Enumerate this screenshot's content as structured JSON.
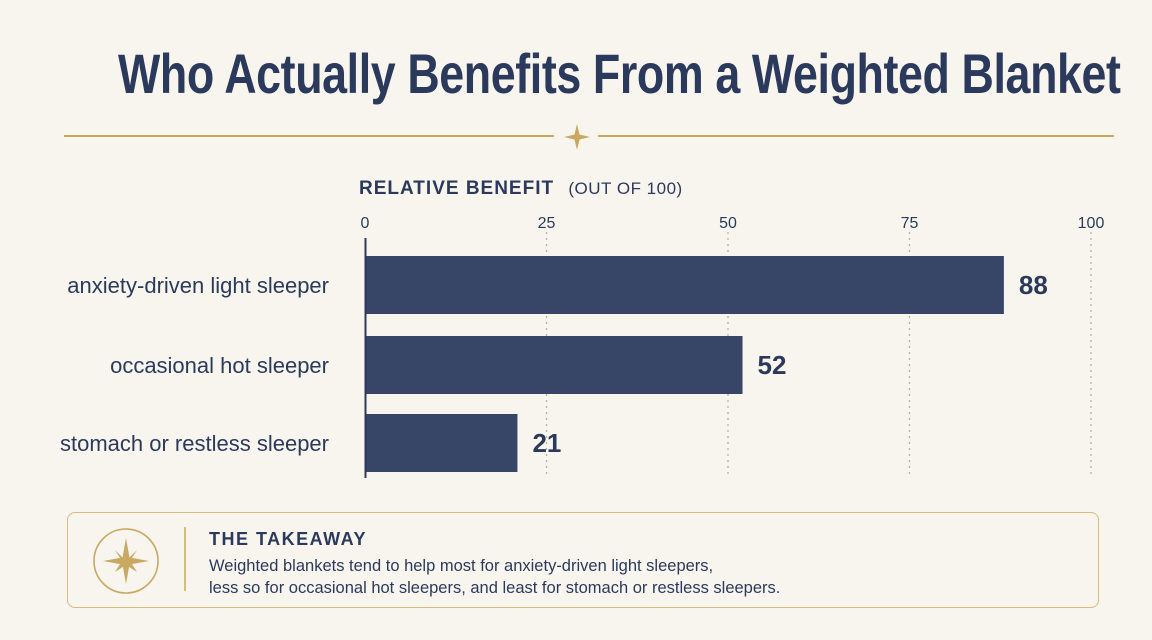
{
  "title": "Who Actually Benefits From a Weighted Blanket",
  "colors": {
    "background": "#f8f5ee",
    "navy": "#2b3a5c",
    "bar": "#374567",
    "gold": "#c9a862",
    "grid": "#b9b2a3"
  },
  "icons": {
    "divider_ornament": "four-point-star-icon",
    "takeaway": "compass-star-icon"
  },
  "chart_data": {
    "type": "bar",
    "orientation": "horizontal",
    "axis_title": "RELATIVE BENEFIT",
    "axis_title_sub": "(OUT OF 100)",
    "categories": [
      "anxiety-driven light sleeper",
      "occasional hot sleeper",
      "stomach or restless sleeper"
    ],
    "values": [
      88,
      52,
      21
    ],
    "xlim": [
      0,
      100
    ],
    "ticks": [
      0,
      25,
      50,
      75,
      100
    ],
    "grid": true,
    "grid_style": "dotted"
  },
  "takeaway": {
    "heading": "THE TAKEAWAY",
    "line1": "Weighted blankets tend to help most for anxiety-driven light sleepers,",
    "line2": "less so for occasional hot sleepers, and least for stomach or restless sleepers."
  }
}
